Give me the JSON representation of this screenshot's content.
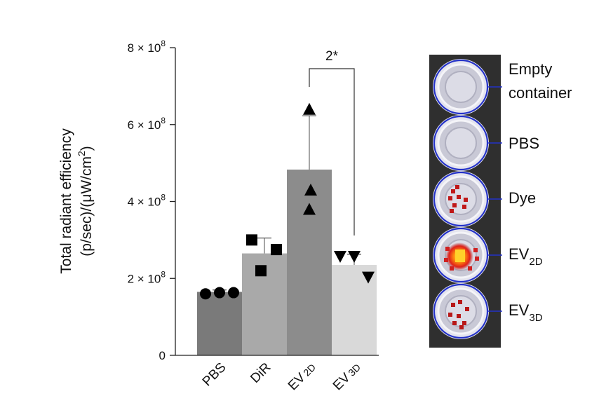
{
  "chart_data": {
    "type": "bar",
    "categories": [
      {
        "label": "PBS",
        "sub": ""
      },
      {
        "label": "DiR",
        "sub": ""
      },
      {
        "label": "EV",
        "sub": "2D"
      },
      {
        "label": "EV",
        "sub": "3D"
      }
    ],
    "values": [
      165000000,
      265000000,
      483000000,
      235000000
    ],
    "errors": [
      5000000,
      40000000,
      140000000,
      28000000
    ],
    "points": [
      [
        160000000,
        163000000,
        163000000
      ],
      [
        300000000,
        220000000,
        275000000
      ],
      [
        640000000,
        430000000,
        380000000
      ],
      [
        257000000,
        257000000,
        203000000
      ]
    ],
    "markers": [
      "circle",
      "square",
      "triangle-up",
      "triangle-down"
    ],
    "bar_colors": [
      "#7a7a7a",
      "#a9a9a9",
      "#8c8c8c",
      "#d9d9d9"
    ],
    "ylim": [
      0,
      800000000
    ],
    "yticks": [
      {
        "value": 0,
        "mant": "0",
        "exp": ""
      },
      {
        "value": 200000000,
        "mant": "2 × 10",
        "exp": "8"
      },
      {
        "value": 400000000,
        "mant": "4 × 10",
        "exp": "8"
      },
      {
        "value": 600000000,
        "mant": "6 × 10",
        "exp": "8"
      },
      {
        "value": 800000000,
        "mant": "8 × 10",
        "exp": "8"
      }
    ],
    "ylabel_line1": "Total radiant efficiency",
    "ylabel_line2": {
      "a": "(p/sec)/(μW/cm",
      "sup": "2",
      "b": ")"
    },
    "significance": {
      "from": 2,
      "to": 3,
      "label": "2*"
    }
  },
  "image_panel": {
    "labels": [
      {
        "lines": [
          "Empty",
          "container"
        ],
        "sub": ""
      },
      {
        "lines": [
          "PBS"
        ],
        "sub": ""
      },
      {
        "lines": [
          "Dye"
        ],
        "sub": ""
      },
      {
        "lines": [
          "EV"
        ],
        "sub": "2D"
      },
      {
        "lines": [
          "EV"
        ],
        "sub": "3D"
      }
    ],
    "background": "#2f2f2f",
    "ring_color": "#2432c8"
  }
}
